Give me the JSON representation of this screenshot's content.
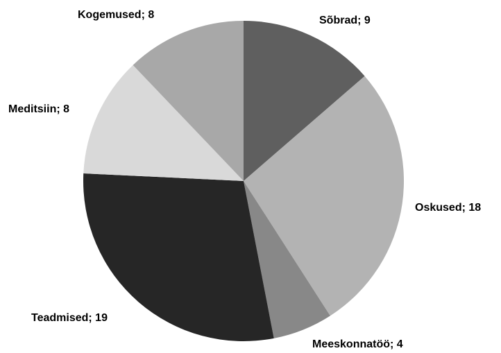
{
  "chart_data": {
    "type": "pie",
    "categories": [
      "Sõbrad",
      "Oskused",
      "Meeskonnatöö",
      "Teadmised",
      "Meditsiin",
      "Kogemused"
    ],
    "values": [
      9,
      18,
      4,
      19,
      8,
      8
    ],
    "value_labels": [
      "Sõbrad; 9",
      "Oskused; 18",
      "Meeskonnatöö; 4",
      "Teadmised; 19",
      "Meditsiin; 8",
      "Kogemused; 8"
    ],
    "colors": [
      "#5f5f5f",
      "#b3b3b3",
      "#888888",
      "#262626",
      "#d9d9d9",
      "#a8a8a8"
    ]
  }
}
